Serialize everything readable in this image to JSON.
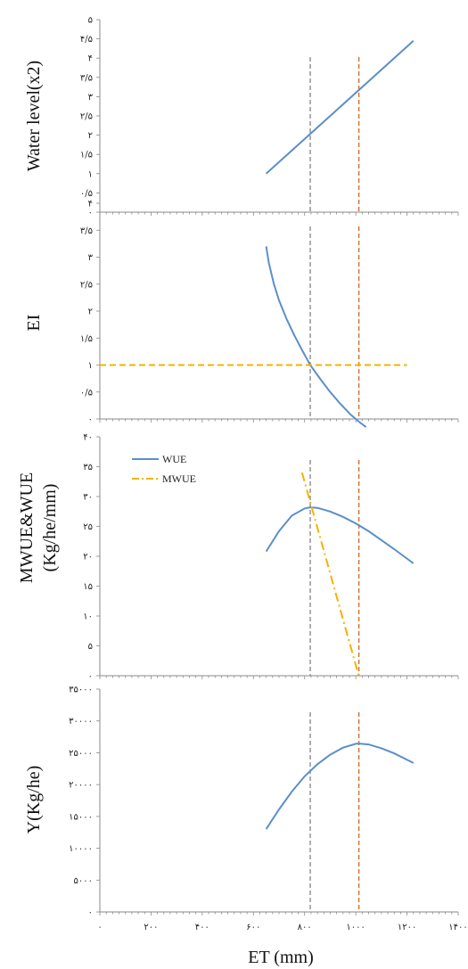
{
  "colors": {
    "series_blue": "#5b8fc9",
    "series_orange": "#f2b400",
    "vline_gray": "#8c8c8c",
    "vline_orange": "#d66a2e",
    "axis": "#8a8a8a"
  },
  "x_axis": {
    "label": "ET (mm)",
    "range": [
      0,
      1400
    ],
    "ticks": [
      0,
      200,
      400,
      600,
      800,
      1000,
      1200,
      1400
    ],
    "tick_labels": [
      "٠",
      "٢٠٠",
      "۴٠٠",
      "۶٠٠",
      "٨٠٠",
      "١٠٠٠",
      "١٢٠٠",
      "١۴٠٠"
    ]
  },
  "chart_data": [
    {
      "type": "line",
      "ylabel": "Water level(x2)",
      "ylim": [
        0,
        5
      ],
      "yticks": [
        0,
        0.5,
        1,
        1.5,
        2,
        2.5,
        3,
        3.5,
        4,
        4.5,
        5
      ],
      "ytick_labels": [
        "٠",
        "٠/۵",
        "١",
        "١/۵",
        "٢",
        "٢/۵",
        "٣",
        "٣/۵",
        "۴",
        "۴/۵",
        "۵"
      ],
      "vlines": [
        {
          "x": 822,
          "color": "gray"
        },
        {
          "x": 1012,
          "color": "orange"
        }
      ],
      "series": [
        {
          "color": "blue",
          "dash": "solid",
          "x": [
            650,
            1225
          ],
          "y": [
            1.0,
            4.45
          ]
        }
      ]
    },
    {
      "type": "line",
      "ylabel": "EI",
      "ylim": [
        0,
        4
      ],
      "yticks": [
        0,
        0.5,
        1,
        1.5,
        2,
        2.5,
        3,
        3.5,
        4
      ],
      "ytick_labels": [
        "٠",
        "٠/۵",
        "١",
        "١/۵",
        "٢",
        "٢/۵",
        "٣",
        "٣/۵",
        "۴"
      ],
      "vlines": [
        {
          "x": 822,
          "color": "gray"
        },
        {
          "x": 1012,
          "color": "orange"
        }
      ],
      "series": [
        {
          "color": "blue",
          "dash": "solid",
          "x": [
            650,
            660,
            680,
            700,
            730,
            760,
            790,
            822,
            860,
            900,
            940,
            980,
            1012,
            1040
          ],
          "y": [
            3.2,
            2.9,
            2.5,
            2.2,
            1.85,
            1.55,
            1.28,
            1.0,
            0.75,
            0.5,
            0.28,
            0.08,
            -0.05,
            -0.15
          ]
        },
        {
          "color": "orange",
          "dash": "dashed",
          "x": [
            0,
            1200
          ],
          "y": [
            1.0,
            1.0
          ]
        }
      ]
    },
    {
      "type": "line",
      "ylabel": "MWUE&WUE\n(Kg/he/mm)",
      "ylim": [
        0,
        40
      ],
      "yticks": [
        0,
        5,
        10,
        15,
        20,
        25,
        30,
        35,
        40
      ],
      "ytick_labels": [
        "٠",
        "۵",
        "١٠",
        "١۵",
        "٢٠",
        "٢۵",
        "٣٠",
        "٣۵",
        "۴٠"
      ],
      "vlines": [
        {
          "x": 822,
          "color": "gray"
        },
        {
          "x": 1012,
          "color": "orange"
        }
      ],
      "legend": {
        "position": "top-left",
        "entries": [
          "WUE",
          "MWUE"
        ]
      },
      "series": [
        {
          "name": "WUE",
          "color": "blue",
          "dash": "solid",
          "x": [
            650,
            700,
            750,
            800,
            822,
            850,
            900,
            950,
            1000,
            1050,
            1100,
            1150,
            1225
          ],
          "y": [
            20.8,
            24.2,
            26.8,
            28.0,
            28.2,
            28.1,
            27.5,
            26.6,
            25.5,
            24.2,
            22.7,
            21.2,
            18.8
          ]
        },
        {
          "name": "MWUE",
          "color": "orange",
          "dash": "dashdot",
          "x": [
            790,
            1015
          ],
          "y": [
            34.0,
            -0.5
          ]
        }
      ]
    },
    {
      "type": "line",
      "ylabel": "Y(Kg/he)",
      "ylim": [
        0,
        35000
      ],
      "yticks": [
        0,
        5000,
        10000,
        15000,
        20000,
        25000,
        30000,
        35000
      ],
      "ytick_labels": [
        "٠",
        "۵٠٠٠",
        "١٠٠٠٠",
        "١۵٠٠٠",
        "٢٠٠٠٠",
        "٢۵٠٠٠",
        "٣٠٠٠٠",
        "٣۵٠٠٠"
      ],
      "vlines": [
        {
          "x": 822,
          "color": "gray"
        },
        {
          "x": 1012,
          "color": "orange"
        }
      ],
      "series": [
        {
          "color": "blue",
          "dash": "solid",
          "x": [
            650,
            700,
            750,
            800,
            850,
            900,
            950,
            1000,
            1012,
            1050,
            1100,
            1150,
            1225
          ],
          "y": [
            13000,
            16100,
            18900,
            21300,
            23200,
            24700,
            25800,
            26400,
            26450,
            26300,
            25700,
            24900,
            23400
          ]
        }
      ]
    }
  ]
}
